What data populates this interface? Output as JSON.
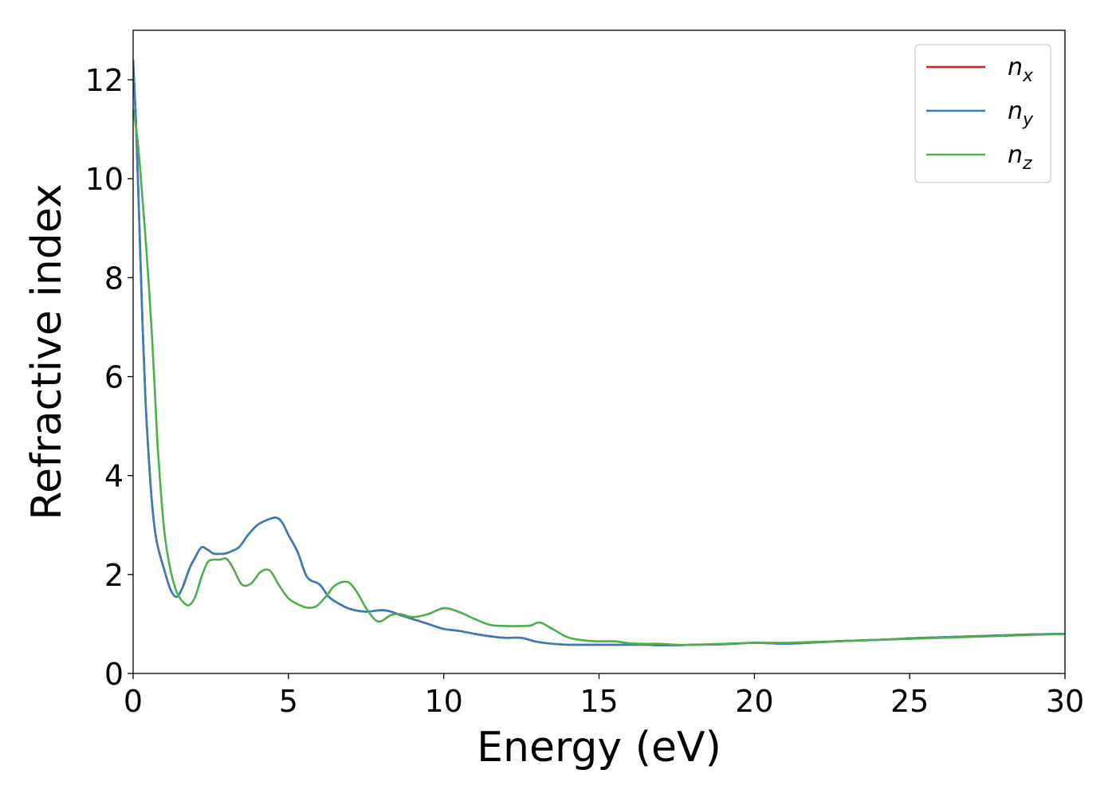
{
  "chart_data": {
    "type": "line",
    "title": "",
    "xlabel": "Energy (eV)",
    "ylabel": "Refractive index",
    "xlim": [
      0,
      30
    ],
    "ylim": [
      0,
      13
    ],
    "xticks": [
      0,
      5,
      10,
      15,
      20,
      25,
      30
    ],
    "yticks": [
      0,
      2,
      4,
      6,
      8,
      10,
      12
    ],
    "grid": false,
    "legend_position": "top-right",
    "series": [
      {
        "name": "n_x",
        "label_base": "n",
        "label_sub": "x",
        "color": "#e41a1c",
        "x": [
          0,
          0.1,
          0.2,
          0.3,
          0.4,
          0.5,
          0.6,
          0.7,
          0.8,
          1.0,
          1.2,
          1.4,
          1.6,
          1.8,
          2.0,
          2.2,
          2.4,
          2.6,
          2.8,
          3.0,
          3.4,
          3.7,
          4.0,
          4.3,
          4.6,
          4.8,
          5.0,
          5.3,
          5.6,
          6.0,
          6.3,
          6.6,
          7.0,
          7.5,
          8.0,
          8.3,
          8.6,
          9.0,
          9.5,
          10.0,
          10.5,
          11.0,
          11.5,
          12.0,
          12.5,
          13.0,
          13.5,
          14.0,
          14.5,
          15.0,
          15.5,
          16.0,
          16.5,
          17.0,
          17.5,
          18.0,
          19.0,
          20.0,
          21.0,
          22.0,
          23.0,
          24.0,
          25.0,
          26.0,
          27.0,
          28.0,
          29.0,
          30.0
        ],
        "y": [
          12.4,
          11.0,
          9.1,
          7.1,
          5.5,
          4.4,
          3.5,
          2.9,
          2.55,
          2.1,
          1.7,
          1.55,
          1.75,
          2.1,
          2.35,
          2.55,
          2.5,
          2.42,
          2.42,
          2.43,
          2.55,
          2.8,
          3.0,
          3.1,
          3.15,
          3.05,
          2.8,
          2.45,
          1.95,
          1.8,
          1.55,
          1.42,
          1.3,
          1.25,
          1.28,
          1.25,
          1.18,
          1.1,
          1.0,
          0.9,
          0.86,
          0.8,
          0.75,
          0.72,
          0.72,
          0.64,
          0.6,
          0.58,
          0.58,
          0.58,
          0.58,
          0.58,
          0.58,
          0.57,
          0.57,
          0.58,
          0.59,
          0.62,
          0.6,
          0.63,
          0.66,
          0.68,
          0.71,
          0.73,
          0.75,
          0.77,
          0.79,
          0.8
        ]
      },
      {
        "name": "n_y",
        "label_base": "n",
        "label_sub": "y",
        "color": "#377eb8",
        "x": [
          0,
          0.1,
          0.2,
          0.3,
          0.4,
          0.5,
          0.6,
          0.7,
          0.8,
          1.0,
          1.2,
          1.4,
          1.6,
          1.8,
          2.0,
          2.2,
          2.4,
          2.6,
          2.8,
          3.0,
          3.4,
          3.7,
          4.0,
          4.3,
          4.6,
          4.8,
          5.0,
          5.3,
          5.6,
          6.0,
          6.3,
          6.6,
          7.0,
          7.5,
          8.0,
          8.3,
          8.6,
          9.0,
          9.5,
          10.0,
          10.5,
          11.0,
          11.5,
          12.0,
          12.5,
          13.0,
          13.5,
          14.0,
          14.5,
          15.0,
          15.5,
          16.0,
          16.5,
          17.0,
          17.5,
          18.0,
          19.0,
          20.0,
          21.0,
          22.0,
          23.0,
          24.0,
          25.0,
          26.0,
          27.0,
          28.0,
          29.0,
          30.0
        ],
        "y": [
          12.4,
          11.0,
          9.1,
          7.1,
          5.5,
          4.4,
          3.5,
          2.9,
          2.55,
          2.1,
          1.7,
          1.55,
          1.75,
          2.1,
          2.35,
          2.55,
          2.5,
          2.42,
          2.42,
          2.43,
          2.55,
          2.8,
          3.0,
          3.1,
          3.15,
          3.05,
          2.8,
          2.45,
          1.95,
          1.8,
          1.55,
          1.42,
          1.3,
          1.25,
          1.28,
          1.25,
          1.18,
          1.1,
          1.0,
          0.9,
          0.86,
          0.8,
          0.75,
          0.72,
          0.72,
          0.64,
          0.6,
          0.58,
          0.58,
          0.58,
          0.58,
          0.58,
          0.58,
          0.57,
          0.57,
          0.58,
          0.59,
          0.62,
          0.6,
          0.63,
          0.66,
          0.68,
          0.71,
          0.73,
          0.75,
          0.77,
          0.79,
          0.8
        ]
      },
      {
        "name": "n_z",
        "label_base": "n",
        "label_sub": "z",
        "color": "#4daf4a",
        "x": [
          0,
          0.1,
          0.2,
          0.3,
          0.4,
          0.5,
          0.6,
          0.7,
          0.8,
          1.0,
          1.2,
          1.4,
          1.6,
          1.8,
          2.0,
          2.2,
          2.4,
          2.6,
          2.8,
          3.0,
          3.2,
          3.5,
          3.8,
          4.1,
          4.4,
          4.7,
          5.0,
          5.3,
          5.6,
          5.9,
          6.2,
          6.5,
          6.9,
          7.2,
          7.5,
          7.8,
          8.0,
          8.3,
          8.6,
          9.0,
          9.5,
          10.0,
          10.5,
          11.0,
          11.5,
          12.0,
          12.5,
          12.8,
          13.1,
          13.5,
          14.0,
          14.5,
          15.0,
          15.5,
          16.0,
          16.5,
          17.0,
          17.5,
          18.0,
          19.0,
          20.0,
          21.0,
          22.0,
          23.0,
          24.0,
          25.0,
          26.0,
          27.0,
          28.0,
          29.0,
          30.0
        ],
        "y": [
          11.4,
          11.0,
          10.4,
          9.6,
          8.8,
          7.9,
          6.9,
          5.7,
          4.5,
          2.9,
          2.1,
          1.65,
          1.45,
          1.38,
          1.55,
          1.95,
          2.25,
          2.3,
          2.3,
          2.32,
          2.15,
          1.8,
          1.82,
          2.05,
          2.08,
          1.78,
          1.52,
          1.4,
          1.33,
          1.36,
          1.55,
          1.78,
          1.85,
          1.65,
          1.32,
          1.08,
          1.06,
          1.18,
          1.2,
          1.14,
          1.2,
          1.32,
          1.24,
          1.1,
          0.98,
          0.96,
          0.96,
          0.97,
          1.03,
          0.9,
          0.73,
          0.67,
          0.65,
          0.65,
          0.61,
          0.6,
          0.6,
          0.58,
          0.58,
          0.6,
          0.62,
          0.62,
          0.64,
          0.66,
          0.68,
          0.7,
          0.72,
          0.74,
          0.76,
          0.78,
          0.8
        ]
      }
    ]
  }
}
